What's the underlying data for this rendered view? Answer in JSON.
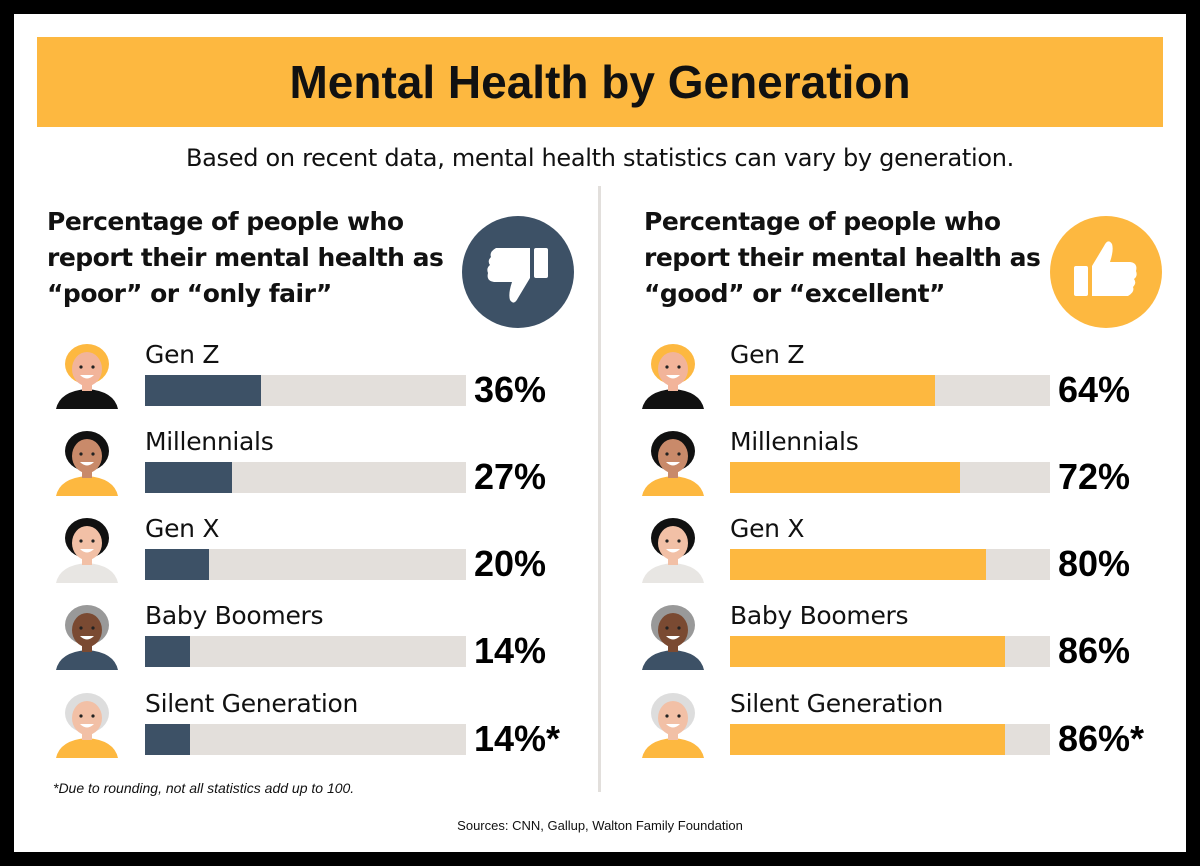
{
  "title": "Mental Health by Generation",
  "subtitle": "Based on recent data, mental health statistics can vary by generation.",
  "footnote": "*Due to rounding, not all statistics add up to 100.",
  "sources": "Sources: CNN, Gallup, Walton Family Foundation",
  "colors": {
    "banner": "#FDB840",
    "negative": "#3D5166",
    "positive": "#FDB840",
    "track": "#E3DFDB"
  },
  "chart_data": [
    {
      "type": "bar",
      "title": "Percentage of people who report their mental health as “poor” or “only fair”",
      "icon": "thumbs-down-icon",
      "categories": [
        "Gen Z",
        "Millennials",
        "Gen X",
        "Baby Boomers",
        "Silent Generation"
      ],
      "values": [
        36,
        27,
        20,
        14,
        14
      ],
      "labels": [
        "36%",
        "27%",
        "20%",
        "14%",
        "14%*"
      ],
      "ylim": [
        0,
        100
      ],
      "color": "#3D5166"
    },
    {
      "type": "bar",
      "title": "Percentage of people who report their mental health as “good” or “excellent”",
      "icon": "thumbs-up-icon",
      "categories": [
        "Gen Z",
        "Millennials",
        "Gen X",
        "Baby Boomers",
        "Silent Generation"
      ],
      "values": [
        64,
        72,
        80,
        86,
        86
      ],
      "labels": [
        "64%",
        "72%",
        "80%",
        "86%",
        "86%*"
      ],
      "ylim": [
        0,
        100
      ],
      "color": "#FDB840"
    }
  ]
}
